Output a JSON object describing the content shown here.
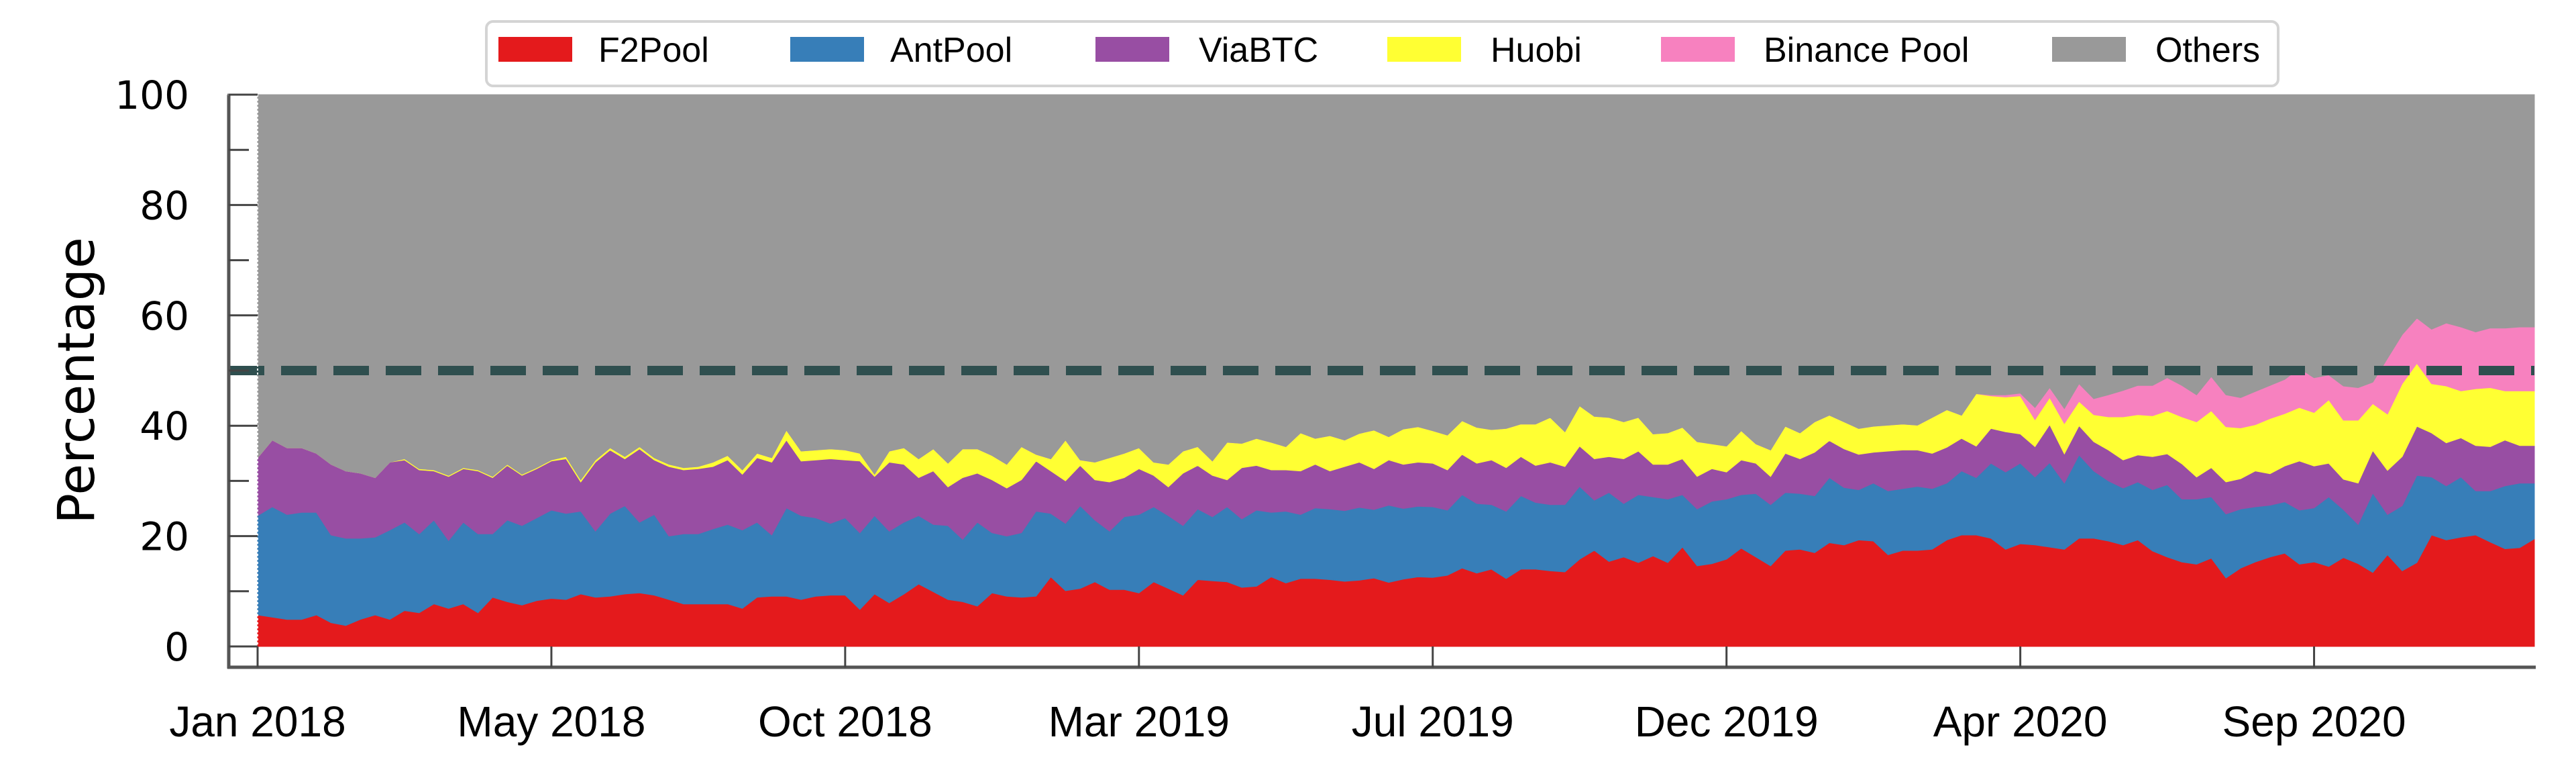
{
  "chart_data": {
    "type": "area",
    "stacked": true,
    "title": "",
    "xlabel": "",
    "ylabel": "Percentage",
    "ylim": [
      0,
      100
    ],
    "yticks": [
      0,
      20,
      40,
      60,
      80,
      100
    ],
    "yticks_minor": [
      10,
      30,
      50,
      70,
      90
    ],
    "x_unit": "weeks since Jan 2018",
    "xlim": [
      0,
      155
    ],
    "xticks": [
      {
        "value": 0,
        "label": "Jan 2018"
      },
      {
        "value": 20,
        "label": "May 2018"
      },
      {
        "value": 40,
        "label": "Oct 2018"
      },
      {
        "value": 60,
        "label": "Mar 2019"
      },
      {
        "value": 80,
        "label": "Jul 2019"
      },
      {
        "value": 100,
        "label": "Dec 2019"
      },
      {
        "value": 120,
        "label": "Apr 2020"
      },
      {
        "value": 140,
        "label": "Sep 2020"
      }
    ],
    "grid": false,
    "legend_position": "top-center",
    "reference_line": {
      "value": 50,
      "style": "dashed",
      "color": "#2f4f4f"
    },
    "series": [
      {
        "name": "F2Pool",
        "color": "#e41a1c",
        "values": [
          5.7,
          5.3,
          4.9,
          4.9,
          5.7,
          4.3,
          3.8,
          4.9,
          5.7,
          4.9,
          6.5,
          6.1,
          7.7,
          6.9,
          7.7,
          6.1,
          8.9,
          8.1,
          7.5,
          8.3,
          8.7,
          8.5,
          9.5,
          8.9,
          9.1,
          9.5,
          9.7,
          9.3,
          8.5,
          7.7,
          7.7,
          7.7,
          7.7,
          6.9,
          8.9,
          9.1,
          9.1,
          8.5,
          9.1,
          9.3,
          9.3,
          6.7,
          9.5,
          7.9,
          9.5,
          11.3,
          9.9,
          8.5,
          8.1,
          7.3,
          9.7,
          9.1,
          8.9,
          9.1,
          12.6,
          10.1,
          10.5,
          11.7,
          10.3,
          10.3,
          9.7,
          11.7,
          10.5,
          9.3,
          12.1,
          11.9,
          11.7,
          10.7,
          10.9,
          12.6,
          11.5,
          12.3,
          12.3,
          12.1,
          11.8,
          12.0,
          12.4,
          11.6,
          12.2,
          12.6,
          12.5,
          12.9,
          14.2,
          13.3,
          14.0,
          12.3,
          14.0,
          14.0,
          13.7,
          13.5,
          15.8,
          17.4,
          15.4,
          16.2,
          15.2,
          16.4,
          15.2,
          18.0,
          14.6,
          15.0,
          15.8,
          17.8,
          16.2,
          14.6,
          17.4,
          17.6,
          17.0,
          18.8,
          18.4,
          19.3,
          19.1,
          16.6,
          17.4,
          17.4,
          17.6,
          19.3,
          20.2,
          20.2,
          19.6,
          17.6,
          18.6,
          18.4,
          18.0,
          17.6,
          19.6,
          19.6,
          19.1,
          18.4,
          19.3,
          17.3,
          16.2,
          15.3,
          14.9,
          16.0,
          12.4,
          14.2,
          15.3,
          16.2,
          16.9,
          14.9,
          15.3,
          14.5,
          16.1,
          15.0,
          13.4,
          16.6,
          13.7,
          15.2,
          20.2,
          19.3,
          19.8,
          20.2,
          18.9,
          17.7,
          17.9,
          19.5
        ]
      },
      {
        "name": "AntPool",
        "color": "#377eb8",
        "values": [
          18.0,
          20.0,
          19.0,
          19.4,
          18.6,
          15.9,
          15.8,
          14.7,
          14.1,
          16.2,
          16.0,
          14.3,
          15.2,
          12.3,
          14.8,
          14.3,
          11.5,
          14.8,
          14.4,
          15.0,
          16.0,
          15.6,
          15.0,
          12.0,
          15.0,
          16.0,
          12.8,
          14.6,
          11.5,
          12.7,
          12.7,
          13.6,
          14.4,
          14.2,
          13.6,
          11.1,
          16.0,
          15.2,
          14.2,
          13.0,
          14.0,
          13.9,
          14.2,
          13.0,
          13.0,
          12.4,
          12.2,
          13.4,
          11.3,
          15.2,
          10.9,
          10.9,
          11.7,
          15.4,
          11.5,
          12.2,
          15.0,
          11.2,
          10.6,
          13.2,
          14.2,
          13.6,
          13.2,
          12.6,
          12.8,
          11.6,
          13.6,
          12.4,
          13.8,
          11.7,
          13.0,
          11.6,
          12.8,
          12.8,
          12.8,
          13.2,
          12.4,
          14.0,
          12.8,
          12.8,
          12.8,
          11.8,
          13.3,
          12.6,
          11.7,
          12.2,
          13.3,
          12.1,
          12.0,
          12.2,
          13.2,
          9.1,
          12.5,
          9.7,
          12.3,
          10.7,
          11.5,
          9.5,
          10.3,
          11.3,
          10.9,
          9.7,
          11.5,
          11.1,
          10.5,
          10.1,
          10.3,
          11.8,
          10.4,
          9.1,
          10.5,
          11.6,
          11.2,
          11.6,
          11.0,
          10.3,
          11.6,
          10.4,
          13.6,
          14.0,
          14.6,
          12.3,
          15.3,
          12.0,
          15.1,
          12.2,
          10.9,
          10.3,
          10.5,
          11.1,
          13.1,
          11.4,
          11.8,
          11.1,
          11.6,
          10.7,
          10.0,
          9.4,
          9.3,
          9.8,
          9.8,
          12.6,
          8.7,
          7.1,
          14.4,
          7.3,
          11.8,
          15.8,
          10.5,
          9.8,
          10.9,
          8.0,
          9.3,
          11.4,
          11.7,
          10.1
        ]
      },
      {
        "name": "ViaBTC",
        "color": "#984ea3",
        "values": [
          10.5,
          12.1,
          12.1,
          11.7,
          10.7,
          12.8,
          12.2,
          11.8,
          10.8,
          12.3,
          11.3,
          11.6,
          8.9,
          11.6,
          9.7,
          11.4,
          10.2,
          9.9,
          9.1,
          8.9,
          8.9,
          9.9,
          5.3,
          12.5,
          11.5,
          8.5,
          13.3,
          9.9,
          12.6,
          11.6,
          11.8,
          11.3,
          11.7,
          10.1,
          11.7,
          13.2,
          12.3,
          9.9,
          10.5,
          11.7,
          10.5,
          13.0,
          7.1,
          12.5,
          10.5,
          6.9,
          9.7,
          7.0,
          11.2,
          8.9,
          9.6,
          8.7,
          9.6,
          9.1,
          7.7,
          7.7,
          7.3,
          7.3,
          8.9,
          7.1,
          8.3,
          5.7,
          5.2,
          9.5,
          7.9,
          7.5,
          4.9,
          9.3,
          8.1,
          7.7,
          7.5,
          7.9,
          7.9,
          6.9,
          8.0,
          8.2,
          7.4,
          8.2,
          8.0,
          8.0,
          7.9,
          7.3,
          7.3,
          7.3,
          8.1,
          7.9,
          7.1,
          6.7,
          7.7,
          6.9,
          7.3,
          7.5,
          6.5,
          8.1,
          7.9,
          5.9,
          6.3,
          6.5,
          5.9,
          5.9,
          4.9,
          6.3,
          5.5,
          5.1,
          7.1,
          6.3,
          7.9,
          6.7,
          7.0,
          6.4,
          5.6,
          7.2,
          7.0,
          6.6,
          6.4,
          6.5,
          5.9,
          5.7,
          6.3,
          7.3,
          5.3,
          5.5,
          6.9,
          5.3,
          5.3,
          5.3,
          5.6,
          5.1,
          4.9,
          6.0,
          5.6,
          6.4,
          4.0,
          5.3,
          5.8,
          5.5,
          6.5,
          5.7,
          6.5,
          8.9,
          7.6,
          6.1,
          5.5,
          7.5,
          7.7,
          8.0,
          8.9,
          8.9,
          8.0,
          7.8,
          7.1,
          8.2,
          8.0,
          8.3,
          6.8,
          6.8
        ]
      },
      {
        "name": "Huobi",
        "color": "#ffff33",
        "values": [
          0,
          0,
          0,
          0,
          0,
          0,
          0,
          0,
          0,
          0,
          0.2,
          0.2,
          0.2,
          0.2,
          0.2,
          0.2,
          0.2,
          0.2,
          0.2,
          0.2,
          0.2,
          0.4,
          0.4,
          0.4,
          0.4,
          0.4,
          0.4,
          0.4,
          0.4,
          0.4,
          0.4,
          0.8,
          0.8,
          0.8,
          0.8,
          0.8,
          1.8,
          1.8,
          1.8,
          1.8,
          1.8,
          1.4,
          0.4,
          2.0,
          3.0,
          3.4,
          4.0,
          4.3,
          5.2,
          4.4,
          4.4,
          4.3,
          6.0,
          1.2,
          2.2,
          7.4,
          1.0,
          3.2,
          4.4,
          4.4,
          3.8,
          2.4,
          4.1,
          4.0,
          3.4,
          2.6,
          6.8,
          4.4,
          4.9,
          5.0,
          4.2,
          6.9,
          4.7,
          6.4,
          4.8,
          5.2,
          7.0,
          4.2,
          6.4,
          6.4,
          5.9,
          6.3,
          6.1,
          6.5,
          5.5,
          7.1,
          5.9,
          7.5,
          8.1,
          6.3,
          7.3,
          7.7,
          7.1,
          6.7,
          6.1,
          5.5,
          5.7,
          5.7,
          6.3,
          4.5,
          4.7,
          5.3,
          3.5,
          4.8,
          4.9,
          4.7,
          5.5,
          4.6,
          4.9,
          4.7,
          4.7,
          4.7,
          4.7,
          4.5,
          6.5,
          6.8,
          4.2,
          9.5,
          5.9,
          6.3,
          6.9,
          4.9,
          4.9,
          5.5,
          4.4,
          4.9,
          6.0,
          7.8,
          7.3,
          7.4,
          7.8,
          8.5,
          10.0,
          10.3,
          10.0,
          9.2,
          8.4,
          10.0,
          9.5,
          9.7,
          9.7,
          11.5,
          10.7,
          11.4,
          8.5,
          10.2,
          13.2,
          11.4,
          8.9,
          10.3,
          8.5,
          10.3,
          10.7,
          8.9,
          9.9,
          9.9
        ]
      },
      {
        "name": "Binance Pool",
        "color": "#f781bf",
        "values": [
          0,
          0,
          0,
          0,
          0,
          0,
          0,
          0,
          0,
          0,
          0,
          0,
          0,
          0,
          0,
          0,
          0,
          0,
          0,
          0,
          0,
          0,
          0,
          0,
          0,
          0,
          0,
          0,
          0,
          0,
          0,
          0,
          0,
          0,
          0,
          0,
          0,
          0,
          0,
          0,
          0,
          0,
          0,
          0,
          0,
          0,
          0,
          0,
          0,
          0,
          0,
          0,
          0,
          0,
          0,
          0,
          0,
          0,
          0,
          0,
          0,
          0,
          0,
          0,
          0,
          0,
          0,
          0,
          0,
          0,
          0,
          0,
          0,
          0,
          0,
          0,
          0,
          0,
          0,
          0,
          0,
          0,
          0,
          0,
          0,
          0,
          0,
          0,
          0,
          0,
          0,
          0,
          0,
          0,
          0,
          0,
          0,
          0,
          0,
          0,
          0,
          0,
          0,
          0,
          0,
          0,
          0,
          0,
          0,
          0,
          0,
          0,
          0,
          0,
          0,
          0,
          0,
          0,
          0.2,
          0.4,
          0.5,
          2.2,
          1.8,
          2.7,
          3.2,
          2.9,
          4.0,
          4.8,
          5.3,
          5.5,
          6.0,
          5.7,
          4.9,
          6.2,
          5.8,
          5.5,
          6.0,
          6.0,
          6.2,
          7.1,
          6.3,
          4.5,
          6.2,
          5.9,
          3.9,
          10.1,
          8.9,
          8.2,
          9.9,
          11.4,
          11.6,
          10.3,
          10.8,
          11.4,
          11.6,
          11.6
        ]
      },
      {
        "name": "Others",
        "color": "#999999",
        "values": "remainder"
      }
    ]
  }
}
